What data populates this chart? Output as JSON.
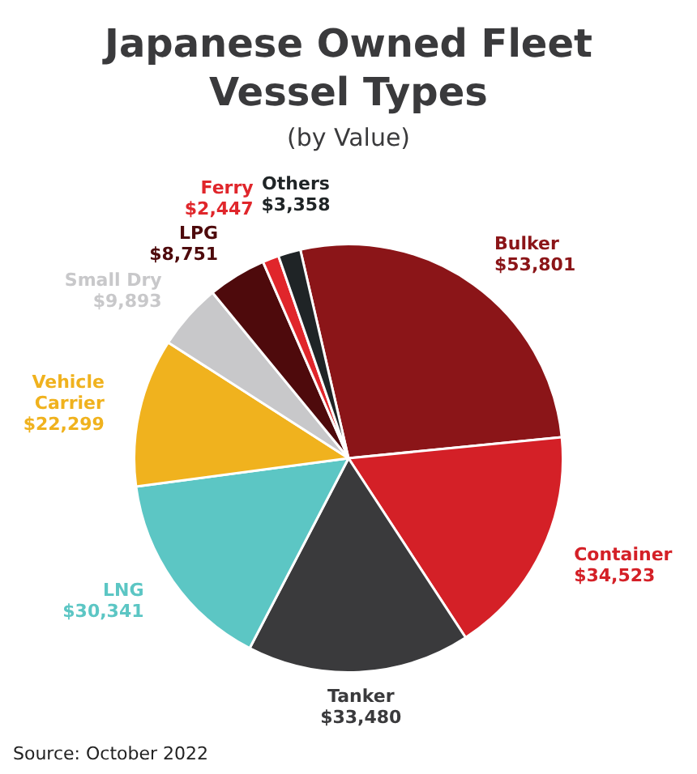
{
  "chart_data": {
    "type": "pie",
    "title": "Japanese Owned Fleet Vessel Types",
    "subtitle": "(by Value)",
    "categories": [
      "Bulker",
      "Container",
      "Tanker",
      "LNG",
      "Vehicle Carrier",
      "Small Dry",
      "LPG",
      "Ferry",
      "Others"
    ],
    "values": [
      53801,
      34523,
      33480,
      30341,
      22299,
      9893,
      8751,
      2447,
      3358
    ],
    "value_labels": [
      "$53,801",
      "$34,523",
      "$33,480",
      "$30,341",
      "$22,299",
      "$9,893",
      "$8,751",
      "$2,447",
      "$3,358"
    ],
    "colors": [
      "#8b1518",
      "#d42027",
      "#3a3a3c",
      "#5cc6c4",
      "#f0b21e",
      "#c8c8ca",
      "#4e0a0c",
      "#e0262b",
      "#1f2426"
    ],
    "annotations": [
      "Source: October 2022"
    ]
  }
}
